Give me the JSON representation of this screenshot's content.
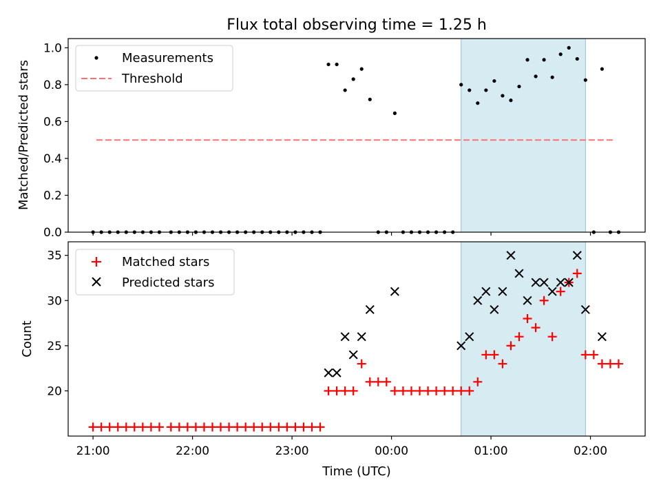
{
  "chart_data": [
    {
      "type": "scatter",
      "title": "Flux total observing time = 1.25 h",
      "xlabel": "",
      "ylabel": "Matched/Predicted stars",
      "ylim": [
        0,
        1.05
      ],
      "yticks": [
        "0.0",
        "0.2",
        "0.4",
        "0.6",
        "0.8",
        "1.0"
      ],
      "xlim_hours": [
        -3.25,
        2.55
      ],
      "highlight_span": {
        "from": "00:42",
        "to": "01:57",
        "color": "#add8e6"
      },
      "legend": {
        "position": "top-left",
        "entries": [
          "Measurements",
          "Threshold"
        ]
      },
      "threshold": {
        "name": "Threshold",
        "y": 0.5,
        "x_from": "21:02",
        "x_to": "02:15",
        "color": "#ff7070",
        "style": "dashed"
      },
      "series": [
        {
          "name": "Measurements",
          "color": "#000000",
          "marker": "dot",
          "points": [
            [
              "21:00",
              0
            ],
            [
              "21:05",
              0
            ],
            [
              "21:10",
              0
            ],
            [
              "21:15",
              0
            ],
            [
              "21:20",
              0
            ],
            [
              "21:25",
              0
            ],
            [
              "21:30",
              0
            ],
            [
              "21:35",
              0
            ],
            [
              "21:40",
              0
            ],
            [
              "21:47",
              0
            ],
            [
              "21:52",
              0
            ],
            [
              "21:57",
              0
            ],
            [
              "22:02",
              0
            ],
            [
              "22:07",
              0
            ],
            [
              "22:12",
              0
            ],
            [
              "22:17",
              0
            ],
            [
              "22:22",
              0
            ],
            [
              "22:27",
              0
            ],
            [
              "22:32",
              0
            ],
            [
              "22:37",
              0
            ],
            [
              "22:42",
              0
            ],
            [
              "22:47",
              0
            ],
            [
              "22:52",
              0
            ],
            [
              "22:57",
              0
            ],
            [
              "23:02",
              0
            ],
            [
              "23:07",
              0
            ],
            [
              "23:12",
              0
            ],
            [
              "23:17",
              0
            ],
            [
              "23:22",
              0.91
            ],
            [
              "23:27",
              0.91
            ],
            [
              "23:32",
              0.77
            ],
            [
              "23:37",
              0.83
            ],
            [
              "23:42",
              0.885
            ],
            [
              "23:47",
              0.72
            ],
            [
              "23:52",
              0
            ],
            [
              "23:57",
              0
            ],
            [
              "00:02",
              0.645
            ],
            [
              "00:07",
              0
            ],
            [
              "00:12",
              0
            ],
            [
              "00:17",
              0
            ],
            [
              "00:22",
              0
            ],
            [
              "00:27",
              0
            ],
            [
              "00:32",
              0
            ],
            [
              "00:37",
              0
            ],
            [
              "00:42",
              0.8
            ],
            [
              "00:47",
              0.77
            ],
            [
              "00:52",
              0.7
            ],
            [
              "00:57",
              0.77
            ],
            [
              "01:02",
              0.82
            ],
            [
              "01:07",
              0.74
            ],
            [
              "01:12",
              0.715
            ],
            [
              "01:17",
              0.79
            ],
            [
              "01:22",
              0.935
            ],
            [
              "01:27",
              0.845
            ],
            [
              "01:32",
              0.935
            ],
            [
              "01:37",
              0.84
            ],
            [
              "01:42",
              0.965
            ],
            [
              "01:47",
              1.0
            ],
            [
              "01:52",
              0.94
            ],
            [
              "01:57",
              0.825
            ],
            [
              "02:02",
              0
            ],
            [
              "02:07",
              0.885
            ],
            [
              "02:12",
              0
            ],
            [
              "02:17",
              0
            ]
          ]
        }
      ]
    },
    {
      "type": "scatter",
      "xlabel": "Time (UTC)",
      "ylabel": "Count",
      "ylim": [
        15,
        36.5
      ],
      "yticks": [
        "20",
        "25",
        "30",
        "35"
      ],
      "xticks": [
        "21:00",
        "22:00",
        "23:00",
        "00:00",
        "01:00",
        "02:00"
      ],
      "xlim_hours": [
        -3.25,
        2.55
      ],
      "highlight_span": {
        "from": "00:42",
        "to": "01:57",
        "color": "#add8e6"
      },
      "legend": {
        "position": "top-left",
        "entries": [
          "Matched stars",
          "Predicted stars"
        ]
      },
      "series": [
        {
          "name": "Matched stars",
          "color": "#ff0000",
          "marker": "plus",
          "points": [
            [
              "21:00",
              16
            ],
            [
              "21:05",
              16
            ],
            [
              "21:10",
              16
            ],
            [
              "21:15",
              16
            ],
            [
              "21:20",
              16
            ],
            [
              "21:25",
              16
            ],
            [
              "21:30",
              16
            ],
            [
              "21:35",
              16
            ],
            [
              "21:40",
              16
            ],
            [
              "21:47",
              16
            ],
            [
              "21:52",
              16
            ],
            [
              "21:57",
              16
            ],
            [
              "22:02",
              16
            ],
            [
              "22:07",
              16
            ],
            [
              "22:12",
              16
            ],
            [
              "22:17",
              16
            ],
            [
              "22:22",
              16
            ],
            [
              "22:27",
              16
            ],
            [
              "22:32",
              16
            ],
            [
              "22:37",
              16
            ],
            [
              "22:42",
              16
            ],
            [
              "22:47",
              16
            ],
            [
              "22:52",
              16
            ],
            [
              "22:57",
              16
            ],
            [
              "23:02",
              16
            ],
            [
              "23:07",
              16
            ],
            [
              "23:12",
              16
            ],
            [
              "23:17",
              16
            ],
            [
              "23:22",
              20
            ],
            [
              "23:27",
              20
            ],
            [
              "23:32",
              20
            ],
            [
              "23:37",
              20
            ],
            [
              "23:42",
              23
            ],
            [
              "23:47",
              21
            ],
            [
              "23:52",
              21
            ],
            [
              "23:57",
              21
            ],
            [
              "00:02",
              20
            ],
            [
              "00:07",
              20
            ],
            [
              "00:12",
              20
            ],
            [
              "00:17",
              20
            ],
            [
              "00:22",
              20
            ],
            [
              "00:27",
              20
            ],
            [
              "00:32",
              20
            ],
            [
              "00:37",
              20
            ],
            [
              "00:42",
              20
            ],
            [
              "00:47",
              20
            ],
            [
              "00:52",
              21
            ],
            [
              "00:57",
              24
            ],
            [
              "01:02",
              24
            ],
            [
              "01:07",
              23
            ],
            [
              "01:12",
              25
            ],
            [
              "01:17",
              26
            ],
            [
              "01:22",
              28
            ],
            [
              "01:27",
              27
            ],
            [
              "01:32",
              30
            ],
            [
              "01:37",
              26
            ],
            [
              "01:42",
              31
            ],
            [
              "01:47",
              32
            ],
            [
              "01:52",
              33
            ],
            [
              "01:57",
              24
            ],
            [
              "02:02",
              24
            ],
            [
              "02:07",
              23
            ],
            [
              "02:12",
              23
            ],
            [
              "02:17",
              23
            ]
          ]
        },
        {
          "name": "Predicted stars",
          "color": "#000000",
          "marker": "x",
          "points": [
            [
              "23:22",
              22
            ],
            [
              "23:27",
              22
            ],
            [
              "23:32",
              26
            ],
            [
              "23:37",
              24
            ],
            [
              "23:42",
              26
            ],
            [
              "23:47",
              29
            ],
            [
              "00:02",
              31
            ],
            [
              "00:42",
              25
            ],
            [
              "00:47",
              26
            ],
            [
              "00:52",
              30
            ],
            [
              "00:57",
              31
            ],
            [
              "01:02",
              29
            ],
            [
              "01:07",
              31
            ],
            [
              "01:12",
              35
            ],
            [
              "01:17",
              33
            ],
            [
              "01:22",
              30
            ],
            [
              "01:27",
              32
            ],
            [
              "01:32",
              32
            ],
            [
              "01:37",
              31
            ],
            [
              "01:42",
              32
            ],
            [
              "01:47",
              32
            ],
            [
              "01:52",
              35
            ],
            [
              "01:57",
              29
            ],
            [
              "02:07",
              26
            ]
          ]
        }
      ]
    }
  ]
}
